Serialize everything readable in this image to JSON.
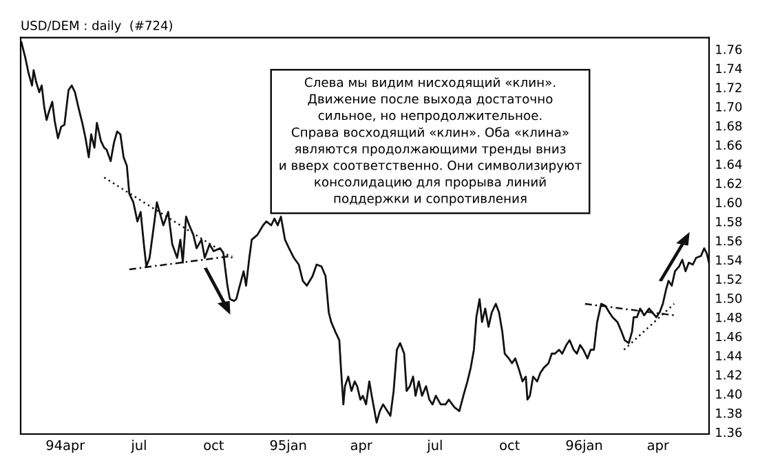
{
  "chart_data": {
    "type": "line",
    "title": "USD/DEM : daily  (#724)",
    "annotations": [
      "Слева мы видим нисходящий «клин».\nДвижение после выхода достаточно\nсильное, но непродолжительное.\nСправа восходящий «клин». Оба «клина»\nявляются продолжающими тренды вниз\nи вверх соответственно. Они символизируют\nконсолидацию для прорыва линий\nподдержки и сопротивления"
    ],
    "series": [
      {
        "color": "#111111",
        "line_style": "solid",
        "x": [
          "1994-02-06",
          "1994-02-11",
          "1994-02-15",
          "1994-02-19",
          "1994-02-21",
          "1994-02-24",
          "1994-02-28",
          "1994-03-03",
          "1994-03-06",
          "1994-03-09",
          "1994-03-12",
          "1994-03-16",
          "1994-03-19",
          "1994-03-23",
          "1994-03-27",
          "1994-03-31",
          "1994-04-05",
          "1994-04-09",
          "1994-04-13",
          "1994-04-17",
          "1994-04-22",
          "1994-04-26",
          "1994-04-30",
          "1994-05-03",
          "1994-05-07",
          "1994-05-10",
          "1994-05-15",
          "1994-05-19",
          "1994-05-22",
          "1994-05-27",
          "1994-05-31",
          "1994-06-04",
          "1994-06-08",
          "1994-06-12",
          "1994-06-16",
          "1994-06-19",
          "1994-06-24",
          "1994-06-29",
          "1994-07-03",
          "1994-07-07",
          "1994-07-10",
          "1994-07-14",
          "1994-07-20",
          "1994-07-23",
          "1994-07-28",
          "1994-07-31",
          "1994-08-06",
          "1994-08-11",
          "1994-08-17",
          "1994-08-21",
          "1994-08-24",
          "1994-08-28",
          "1994-09-01",
          "1994-09-06",
          "1994-09-10",
          "1994-09-16",
          "1994-09-20",
          "1994-09-26",
          "1994-10-01",
          "1994-10-09",
          "1994-10-13",
          "1994-10-15",
          "1994-10-18",
          "1994-10-21",
          "1994-10-26",
          "1994-10-29",
          "1994-11-01",
          "1994-11-07",
          "1994-11-10",
          "1994-11-14",
          "1994-11-17",
          "1994-11-24",
          "1994-12-01",
          "1994-12-05",
          "1994-12-11",
          "1994-12-15",
          "1994-12-19",
          "1994-12-23",
          "1994-12-28",
          "1995-01-02",
          "1995-01-08",
          "1995-01-14",
          "1995-01-19",
          "1995-01-24",
          "1995-01-31",
          "1995-02-05",
          "1995-02-11",
          "1995-02-16",
          "1995-02-18",
          "1995-02-20",
          "1995-02-23",
          "1995-02-28",
          "1995-03-05",
          "1995-03-07",
          "1995-03-10",
          "1995-03-12",
          "1995-03-16",
          "1995-03-20",
          "1995-03-24",
          "1995-03-27",
          "1995-03-31",
          "1995-04-03",
          "1995-04-07",
          "1995-04-11",
          "1995-04-14",
          "1995-04-17",
          "1995-04-20",
          "1995-04-24",
          "1995-04-28",
          "1995-05-07",
          "1995-05-11",
          "1995-05-15",
          "1995-05-19",
          "1995-05-24",
          "1995-05-27",
          "1995-05-31",
          "1995-06-04",
          "1995-06-07",
          "1995-06-11",
          "1995-06-15",
          "1995-06-20",
          "1995-06-24",
          "1995-06-28",
          "1995-07-02",
          "1995-07-08",
          "1995-07-14",
          "1995-07-18",
          "1995-07-25",
          "1995-07-31",
          "1995-08-05",
          "1995-08-10",
          "1995-08-14",
          "1995-08-18",
          "1995-08-21",
          "1995-08-25",
          "1995-08-28",
          "1995-09-01",
          "1995-09-05",
          "1995-09-09",
          "1995-09-14",
          "1995-09-18",
          "1995-09-22",
          "1995-09-25",
          "1995-09-30",
          "1995-10-04",
          "1995-10-08",
          "1995-10-12",
          "1995-10-17",
          "1995-10-21",
          "1995-10-23",
          "1995-10-26",
          "1995-10-30",
          "1995-11-04",
          "1995-11-08",
          "1995-11-12",
          "1995-11-18",
          "1995-11-22",
          "1995-11-26",
          "1995-12-01",
          "1995-12-05",
          "1995-12-10",
          "1995-12-14",
          "1995-12-19",
          "1995-12-23",
          "1995-12-27",
          "1995-12-31",
          "1996-01-05",
          "1996-01-09",
          "1996-01-13",
          "1996-01-17",
          "1996-01-22",
          "1996-01-27",
          "1996-02-01",
          "1996-02-05",
          "1996-02-11",
          "1996-02-16",
          "1996-02-20",
          "1996-02-25",
          "1996-02-29",
          "1996-03-02",
          "1996-03-06",
          "1996-03-10",
          "1996-03-15",
          "1996-03-21",
          "1996-03-25",
          "1996-03-30",
          "1996-04-03",
          "1996-04-07",
          "1996-04-11",
          "1996-04-14",
          "1996-04-18",
          "1996-04-22",
          "1996-04-27",
          "1996-05-01",
          "1996-05-05",
          "1996-05-09",
          "1996-05-14",
          "1996-05-18",
          "1996-05-24",
          "1996-05-28",
          "1996-05-31",
          "1996-06-03"
        ],
        "values": [
          1.767,
          1.75,
          1.734,
          1.722,
          1.738,
          1.726,
          1.715,
          1.722,
          1.7,
          1.686,
          1.695,
          1.705,
          1.685,
          1.667,
          1.679,
          1.681,
          1.717,
          1.722,
          1.715,
          1.7,
          1.683,
          1.667,
          1.647,
          1.671,
          1.657,
          1.683,
          1.664,
          1.657,
          1.655,
          1.643,
          1.662,
          1.674,
          1.671,
          1.647,
          1.638,
          1.609,
          1.6,
          1.58,
          1.59,
          1.556,
          1.533,
          1.542,
          1.58,
          1.6,
          1.585,
          1.576,
          1.59,
          1.556,
          1.542,
          1.561,
          1.537,
          1.585,
          1.576,
          1.566,
          1.552,
          1.561,
          1.542,
          1.556,
          1.549,
          1.552,
          1.547,
          1.533,
          1.513,
          1.499,
          1.497,
          1.499,
          1.509,
          1.528,
          1.513,
          1.542,
          1.561,
          1.566,
          1.576,
          1.58,
          1.576,
          1.583,
          1.576,
          1.585,
          1.561,
          1.552,
          1.542,
          1.535,
          1.518,
          1.513,
          1.523,
          1.535,
          1.533,
          1.523,
          1.504,
          1.485,
          1.475,
          1.465,
          1.456,
          1.427,
          1.389,
          1.408,
          1.418,
          1.403,
          1.413,
          1.408,
          1.394,
          1.398,
          1.389,
          1.413,
          1.398,
          1.384,
          1.37,
          1.382,
          1.389,
          1.377,
          1.403,
          1.446,
          1.453,
          1.442,
          1.403,
          1.408,
          1.418,
          1.398,
          1.413,
          1.398,
          1.408,
          1.394,
          1.389,
          1.398,
          1.389,
          1.389,
          1.394,
          1.386,
          1.382,
          1.398,
          1.413,
          1.427,
          1.446,
          1.48,
          1.499,
          1.475,
          1.489,
          1.47,
          1.485,
          1.494,
          1.485,
          1.465,
          1.442,
          1.437,
          1.432,
          1.437,
          1.427,
          1.413,
          1.418,
          1.394,
          1.398,
          1.418,
          1.413,
          1.422,
          1.427,
          1.432,
          1.442,
          1.442,
          1.446,
          1.442,
          1.451,
          1.456,
          1.446,
          1.442,
          1.451,
          1.446,
          1.437,
          1.446,
          1.446,
          1.475,
          1.494,
          1.492,
          1.485,
          1.48,
          1.475,
          1.465,
          1.456,
          1.453,
          1.465,
          1.48,
          1.48,
          1.489,
          1.482,
          1.489,
          1.485,
          1.48,
          1.485,
          1.494,
          1.509,
          1.518,
          1.513,
          1.528,
          1.533,
          1.54,
          1.528,
          1.537,
          1.535,
          1.542,
          1.544,
          1.552,
          1.547,
          1.537
        ]
      },
      {
        "color": "#111111",
        "line_style": "dotted",
        "x": [
          "1994-05-19",
          "1994-10-24"
        ],
        "values": [
          1.626,
          1.542
        ]
      },
      {
        "color": "#111111",
        "line_style": "dashed",
        "x": [
          "1994-06-19",
          "1994-10-24"
        ],
        "values": [
          1.53,
          1.544
        ]
      },
      {
        "color": "#111111",
        "line_style": "dashed",
        "x": [
          "1996-01-02",
          "1996-04-21"
        ],
        "values": [
          1.494,
          1.482
        ]
      },
      {
        "color": "#111111",
        "line_style": "dotted",
        "x": [
          "1996-02-19",
          "1996-04-21"
        ],
        "values": [
          1.446,
          1.494
        ]
      }
    ],
    "xlim": [
      "1994-02-05",
      "1996-06-03"
    ],
    "xticks": [
      {
        "value": "1994-04-01",
        "label": "94apr"
      },
      {
        "value": "1994-07-01",
        "label": "jul"
      },
      {
        "value": "1994-10-01",
        "label": "oct"
      },
      {
        "value": "1995-01-01",
        "label": "95jan"
      },
      {
        "value": "1995-04-01",
        "label": "apr"
      },
      {
        "value": "1995-07-01",
        "label": "jul"
      },
      {
        "value": "1995-10-01",
        "label": "oct"
      },
      {
        "value": "1996-01-01",
        "label": "96jan"
      },
      {
        "value": "1996-04-01",
        "label": "apr"
      }
    ],
    "ylim": [
      1.358,
      1.772
    ],
    "yticks": [
      1.36,
      1.38,
      {
        "value": 1.4,
        "label": "1.40"
      },
      1.42,
      1.44,
      1.46,
      1.48,
      {
        "value": 1.5,
        "label": "1.50"
      },
      1.52,
      1.54,
      1.56,
      1.58,
      {
        "value": 1.6,
        "label": "1.60"
      },
      1.62,
      1.64,
      1.66,
      1.68,
      {
        "value": 1.7,
        "label": "1.70"
      },
      1.72,
      1.74,
      1.76
    ],
    "grid": false,
    "legend": false
  }
}
